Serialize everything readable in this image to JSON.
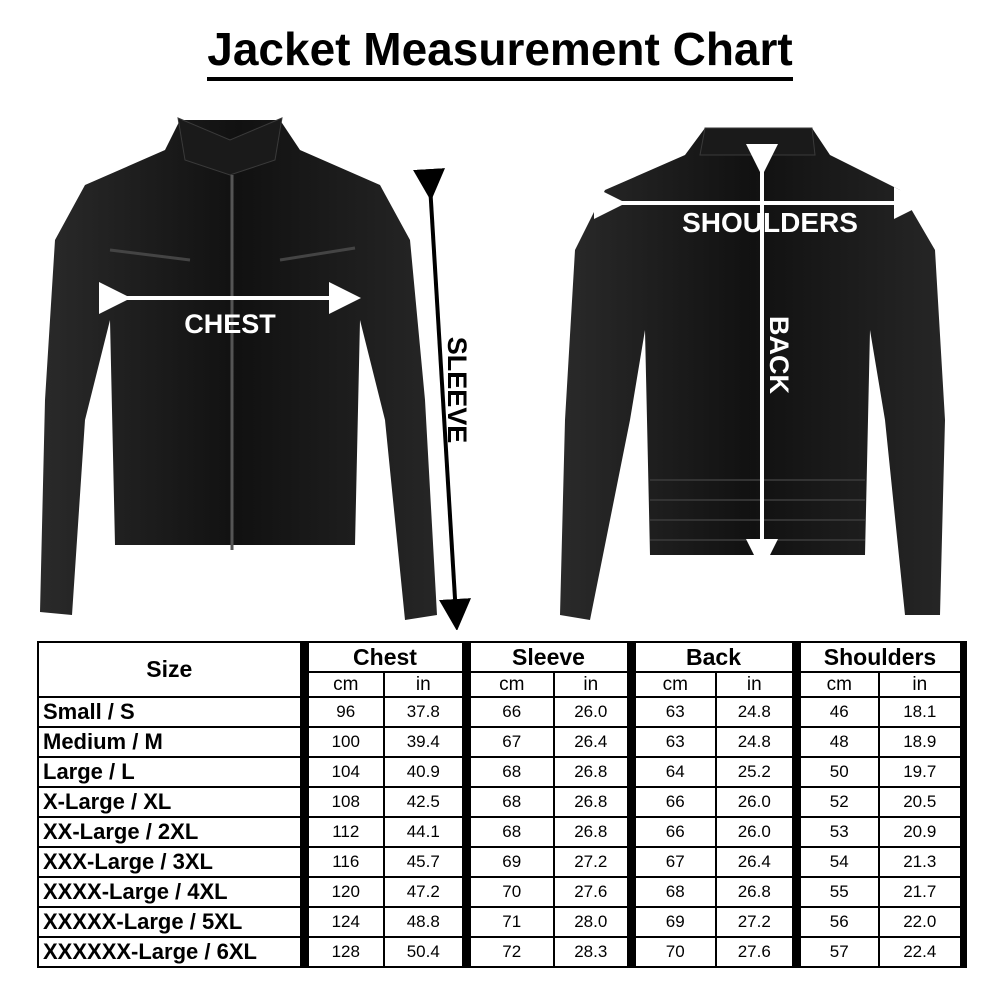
{
  "title": "Jacket Measurement Chart",
  "image_labels": {
    "chest": "CHEST",
    "sleeve": "SLEEVE",
    "shoulders": "SHOULDERS",
    "back": "BACK"
  },
  "table": {
    "size_header": "Size",
    "groups": [
      "Chest",
      "Sleeve",
      "Back",
      "Shoulders"
    ],
    "units": [
      "cm",
      "in"
    ],
    "rows": [
      {
        "size": "Small / S",
        "values": [
          "96",
          "37.8",
          "66",
          "26.0",
          "63",
          "24.8",
          "46",
          "18.1"
        ]
      },
      {
        "size": "Medium / M",
        "values": [
          "100",
          "39.4",
          "67",
          "26.4",
          "63",
          "24.8",
          "48",
          "18.9"
        ]
      },
      {
        "size": "Large / L",
        "values": [
          "104",
          "40.9",
          "68",
          "26.8",
          "64",
          "25.2",
          "50",
          "19.7"
        ]
      },
      {
        "size": "X-Large / XL",
        "values": [
          "108",
          "42.5",
          "68",
          "26.8",
          "66",
          "26.0",
          "52",
          "20.5"
        ]
      },
      {
        "size": "XX-Large / 2XL",
        "values": [
          "112",
          "44.1",
          "68",
          "26.8",
          "66",
          "26.0",
          "53",
          "20.9"
        ]
      },
      {
        "size": "XXX-Large / 3XL",
        "values": [
          "116",
          "45.7",
          "69",
          "27.2",
          "67",
          "26.4",
          "54",
          "21.3"
        ]
      },
      {
        "size": "XXXX-Large / 4XL",
        "values": [
          "120",
          "47.2",
          "70",
          "27.6",
          "68",
          "26.8",
          "55",
          "21.7"
        ]
      },
      {
        "size": "XXXXX-Large / 5XL",
        "values": [
          "124",
          "48.8",
          "71",
          "28.0",
          "69",
          "27.2",
          "56",
          "22.0"
        ]
      },
      {
        "size": "XXXXXX-Large / 6XL",
        "values": [
          "128",
          "50.4",
          "72",
          "28.3",
          "70",
          "27.6",
          "57",
          "22.4"
        ]
      }
    ]
  }
}
